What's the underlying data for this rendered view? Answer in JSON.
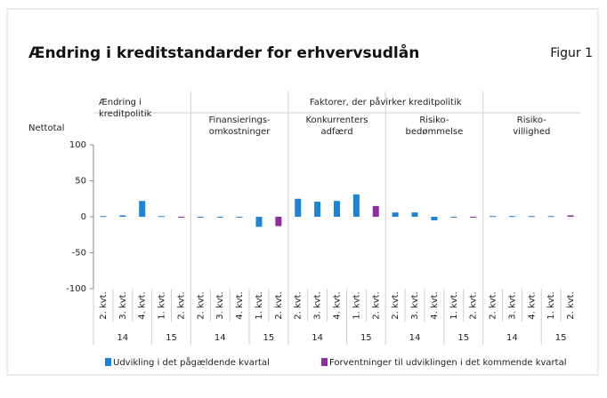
{
  "chart_data": {
    "type": "bar",
    "title": "Ændring i kreditstandarder for erhvervsudlån",
    "figure_label": "Figur 1",
    "ylabel": "Nettotal",
    "header": "Faktorer, der påvirker kreditpolitik",
    "groups": [
      {
        "name": [
          "Ændring i",
          "kreditpolitik"
        ],
        "years": [
          {
            "label": "14",
            "quarters": [
              "2. kvt.",
              "3. kvt.",
              "4. kvt."
            ]
          },
          {
            "label": "15",
            "quarters": [
              "1. kvt.",
              "2. kvt."
            ]
          }
        ]
      },
      {
        "name": [
          "Finansierings-",
          "omkostninger"
        ],
        "years": [
          {
            "label": "14",
            "quarters": [
              "2. kvt.",
              "3. kvt.",
              "4. kvt."
            ]
          },
          {
            "label": "15",
            "quarters": [
              "1. kvt.",
              "2. kvt."
            ]
          }
        ]
      },
      {
        "name": [
          "Konkurrenters",
          "adfærd"
        ],
        "years": [
          {
            "label": "14",
            "quarters": [
              "2. kvt.",
              "3. kvt.",
              "4. kvt."
            ]
          },
          {
            "label": "15",
            "quarters": [
              "1. kvt.",
              "2. kvt."
            ]
          }
        ]
      },
      {
        "name": [
          "Risiko-",
          "bedømmelse"
        ],
        "years": [
          {
            "label": "14",
            "quarters": [
              "2. kvt.",
              "3. kvt.",
              "4. kvt."
            ]
          },
          {
            "label": "15",
            "quarters": [
              "1. kvt.",
              "2. kvt."
            ]
          }
        ]
      },
      {
        "name": [
          "Risiko-",
          "villighed"
        ],
        "years": [
          {
            "label": "14",
            "quarters": [
              "2. kvt.",
              "3. kvt.",
              "4. kvt."
            ]
          },
          {
            "label": "15",
            "quarters": [
              "1. kvt.",
              "2. kvt."
            ]
          }
        ]
      }
    ],
    "series": [
      {
        "name": "Udvikling i det pågældende kvartal",
        "color": "#1b84d8",
        "values": [
          1,
          2,
          22,
          1,
          null,
          0,
          0,
          0,
          -14,
          null,
          25,
          21,
          22,
          31,
          null,
          6,
          6,
          -5,
          0,
          null,
          1,
          1,
          1,
          1,
          null
        ]
      },
      {
        "name": "Forventninger til udviklingen i det kommende kvartal",
        "color": "#8e2ea0",
        "values": [
          null,
          null,
          null,
          null,
          0,
          null,
          null,
          null,
          null,
          -13,
          null,
          null,
          null,
          null,
          15,
          null,
          null,
          null,
          null,
          -1,
          null,
          null,
          null,
          null,
          2
        ]
      }
    ],
    "ylim": [
      -100,
      100
    ],
    "yticks": [
      -100,
      -50,
      0,
      50,
      100
    ],
    "grid": false
  }
}
